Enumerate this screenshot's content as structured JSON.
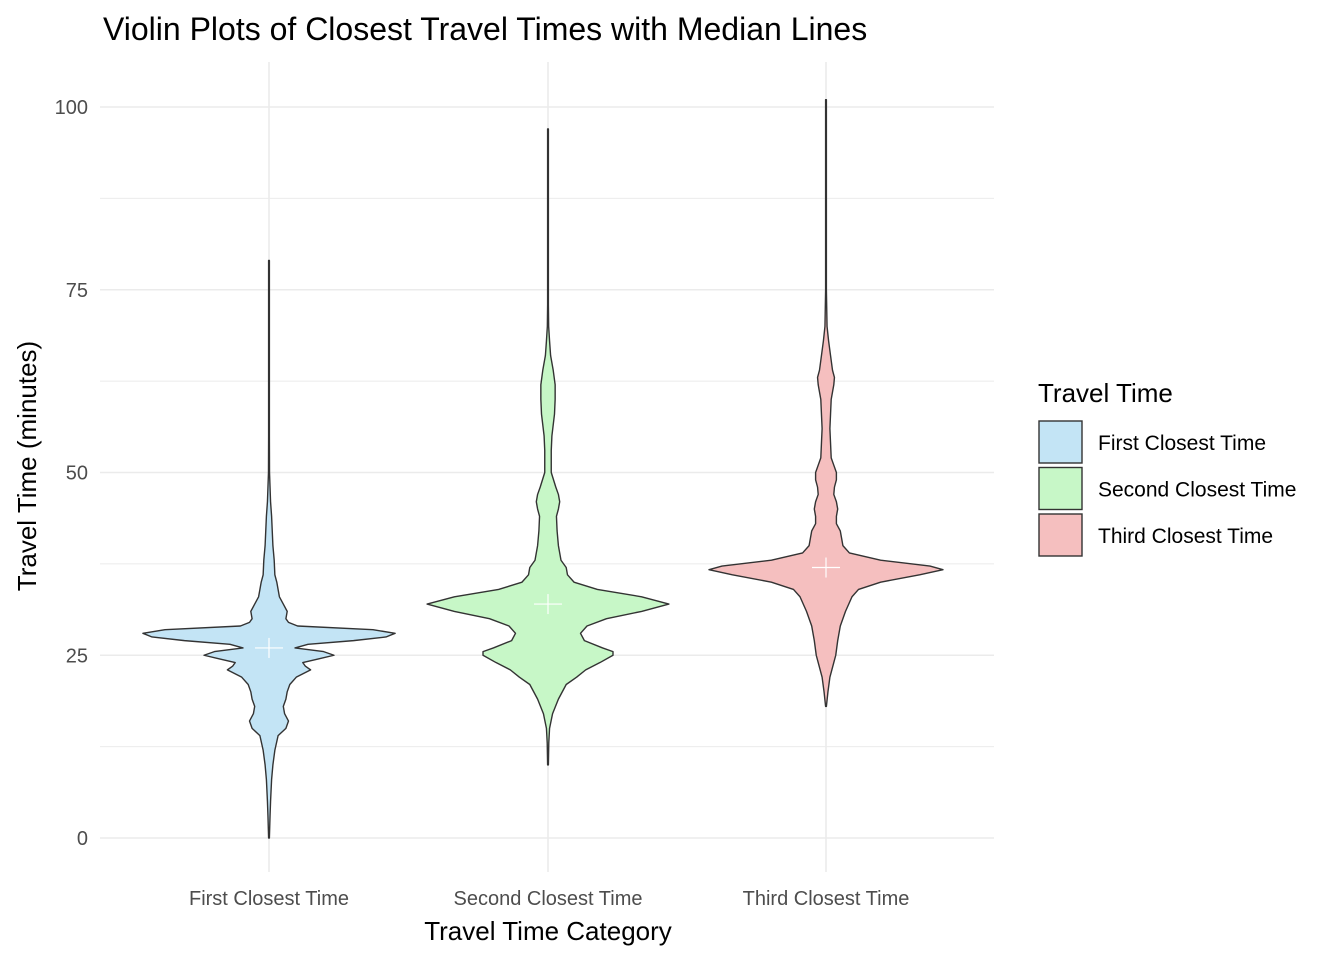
{
  "chart_data": {
    "type": "violin",
    "title": "Violin Plots of Closest Travel Times with Median Lines",
    "xlabel": "Travel Time Category",
    "ylabel": "Travel Time (minutes)",
    "categories": [
      "First Closest Time",
      "Second Closest Time",
      "Third Closest Time"
    ],
    "ylim": [
      -2,
      106
    ],
    "yticks": [
      0,
      25,
      50,
      75,
      100
    ],
    "grid": true,
    "legend": {
      "title": "Travel Time",
      "placement": "right",
      "entries": [
        "First Closest Time",
        "Second Closest Time",
        "Third Closest Time"
      ]
    },
    "colors": {
      "First Closest Time": "#c3e4f5",
      "Second Closest Time": "#c7f7c7",
      "Third Closest Time": "#f5bfbf",
      "outline": "#333333",
      "median": "#ffffff",
      "grid": "#ebebeb"
    },
    "series": [
      {
        "name": "First Closest Time",
        "min": 0,
        "max": 79,
        "median": 26,
        "density": [
          [
            0,
            0.003
          ],
          [
            3,
            0.008
          ],
          [
            5,
            0.012
          ],
          [
            8,
            0.02
          ],
          [
            10,
            0.03
          ],
          [
            12,
            0.045
          ],
          [
            14,
            0.07
          ],
          [
            15,
            0.13
          ],
          [
            16,
            0.15
          ],
          [
            17,
            0.12
          ],
          [
            18,
            0.11
          ],
          [
            19,
            0.13
          ],
          [
            20,
            0.14
          ],
          [
            21,
            0.16
          ],
          [
            22,
            0.21
          ],
          [
            23,
            0.32
          ],
          [
            23.5,
            0.28
          ],
          [
            24,
            0.26
          ],
          [
            24.5,
            0.38
          ],
          [
            25,
            0.5
          ],
          [
            25.5,
            0.42
          ],
          [
            26,
            0.2
          ],
          [
            26.5,
            0.3
          ],
          [
            27,
            0.65
          ],
          [
            27.5,
            0.9
          ],
          [
            28,
            0.97
          ],
          [
            28.5,
            0.8
          ],
          [
            29,
            0.22
          ],
          [
            29.5,
            0.15
          ],
          [
            30,
            0.13
          ],
          [
            31,
            0.14
          ],
          [
            32,
            0.11
          ],
          [
            33,
            0.08
          ],
          [
            34,
            0.07
          ],
          [
            35,
            0.06
          ],
          [
            36,
            0.045
          ],
          [
            38,
            0.04
          ],
          [
            40,
            0.03
          ],
          [
            42,
            0.025
          ],
          [
            44,
            0.02
          ],
          [
            46,
            0.012
          ],
          [
            48,
            0.008
          ],
          [
            50,
            0.004
          ],
          [
            55,
            0.003
          ],
          [
            79,
            0.003
          ]
        ]
      },
      {
        "name": "Second Closest Time",
        "min": 10,
        "max": 97,
        "median": 32,
        "density": [
          [
            10,
            0.003
          ],
          [
            13,
            0.006
          ],
          [
            15,
            0.012
          ],
          [
            17,
            0.035
          ],
          [
            19,
            0.08
          ],
          [
            21,
            0.14
          ],
          [
            22,
            0.22
          ],
          [
            23,
            0.29
          ],
          [
            24,
            0.4
          ],
          [
            25,
            0.5
          ],
          [
            25.5,
            0.5
          ],
          [
            26,
            0.42
          ],
          [
            27,
            0.28
          ],
          [
            28,
            0.25
          ],
          [
            29,
            0.3
          ],
          [
            30,
            0.45
          ],
          [
            31,
            0.72
          ],
          [
            32,
            0.93
          ],
          [
            33,
            0.72
          ],
          [
            34,
            0.38
          ],
          [
            35,
            0.2
          ],
          [
            36,
            0.15
          ],
          [
            37,
            0.14
          ],
          [
            38,
            0.1
          ],
          [
            40,
            0.08
          ],
          [
            42,
            0.07
          ],
          [
            44,
            0.065
          ],
          [
            45,
            0.08
          ],
          [
            46,
            0.09
          ],
          [
            47,
            0.08
          ],
          [
            48,
            0.06
          ],
          [
            50,
            0.025
          ],
          [
            53,
            0.025
          ],
          [
            55,
            0.03
          ],
          [
            58,
            0.05
          ],
          [
            60,
            0.055
          ],
          [
            62,
            0.055
          ],
          [
            64,
            0.04
          ],
          [
            66,
            0.02
          ],
          [
            68,
            0.012
          ],
          [
            70,
            0.005
          ],
          [
            73,
            0.003
          ],
          [
            97,
            0.003
          ]
        ]
      },
      {
        "name": "Third Closest Time",
        "min": 18,
        "max": 101,
        "median": 37,
        "density": [
          [
            18,
            0.003
          ],
          [
            20,
            0.015
          ],
          [
            22,
            0.03
          ],
          [
            24,
            0.06
          ],
          [
            25,
            0.075
          ],
          [
            27,
            0.09
          ],
          [
            29,
            0.11
          ],
          [
            31,
            0.15
          ],
          [
            33,
            0.2
          ],
          [
            34,
            0.25
          ],
          [
            35,
            0.42
          ],
          [
            36,
            0.72
          ],
          [
            36.7,
            0.9
          ],
          [
            37.2,
            0.8
          ],
          [
            38,
            0.42
          ],
          [
            39,
            0.18
          ],
          [
            40,
            0.13
          ],
          [
            41,
            0.12
          ],
          [
            42,
            0.11
          ],
          [
            43,
            0.08
          ],
          [
            44,
            0.08
          ],
          [
            45,
            0.09
          ],
          [
            46,
            0.08
          ],
          [
            47,
            0.06
          ],
          [
            48,
            0.065
          ],
          [
            49,
            0.08
          ],
          [
            50,
            0.08
          ],
          [
            51,
            0.06
          ],
          [
            52,
            0.04
          ],
          [
            54,
            0.035
          ],
          [
            56,
            0.03
          ],
          [
            58,
            0.035
          ],
          [
            60,
            0.04
          ],
          [
            62,
            0.06
          ],
          [
            63,
            0.065
          ],
          [
            64,
            0.05
          ],
          [
            66,
            0.035
          ],
          [
            68,
            0.02
          ],
          [
            70,
            0.008
          ],
          [
            75,
            0.003
          ],
          [
            101,
            0.003
          ]
        ]
      }
    ]
  }
}
